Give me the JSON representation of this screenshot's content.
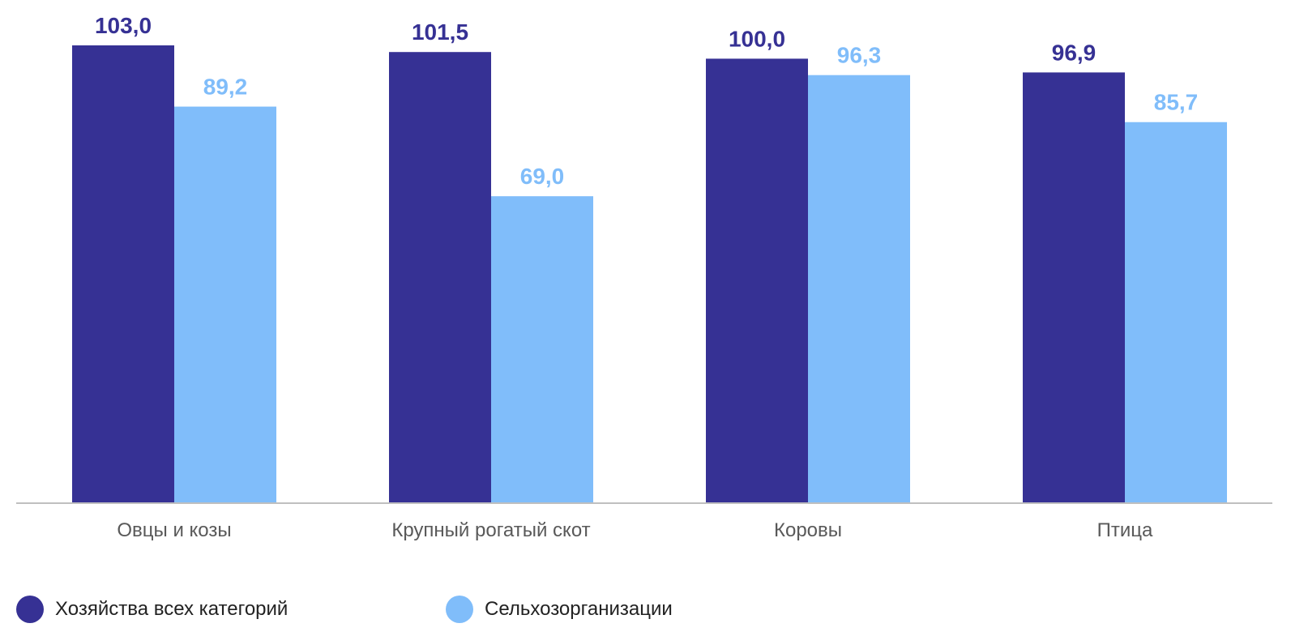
{
  "chart_data": {
    "type": "bar",
    "categories": [
      "Овцы и козы",
      "Крупный рогатый скот",
      "Коровы",
      "Птица"
    ],
    "series": [
      {
        "name": "Хозяйства всех категорий",
        "values": [
          103.0,
          101.5,
          100.0,
          96.9
        ],
        "labels": [
          "103,0",
          "101,5",
          "100,0",
          "96,9"
        ],
        "color": "#363194"
      },
      {
        "name": "Сельхозорганизации",
        "values": [
          89.2,
          69.0,
          96.3,
          85.7
        ],
        "labels": [
          "89,2",
          "69,0",
          "96,3",
          "85,7"
        ],
        "color": "#80BDFA"
      }
    ],
    "title": "",
    "xlabel": "",
    "ylabel": "",
    "ylim": [
      0,
      103
    ],
    "grid": false,
    "legend_position": "bottom-left",
    "axis_color": "#BFBFBF",
    "category_label_color": "#595959"
  }
}
